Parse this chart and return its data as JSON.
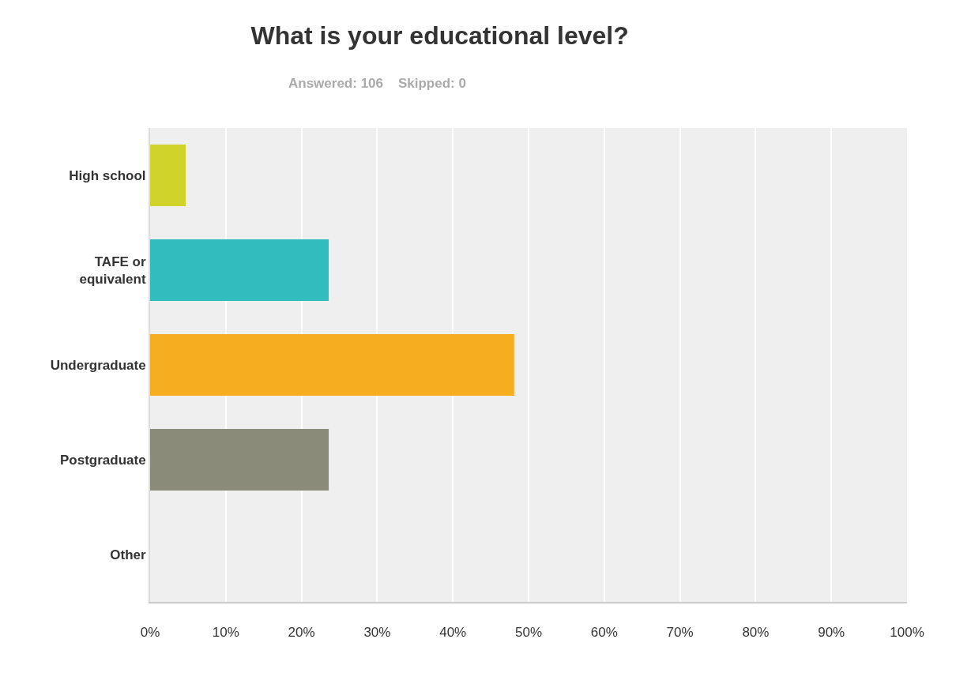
{
  "chart_data": {
    "type": "bar",
    "orientation": "horizontal",
    "title": "What is your educational level?",
    "subtitle": "Answered: 106    Skipped: 0",
    "categories": [
      "High school",
      "TAFE or equivalent",
      "Undergraduate",
      "Postgraduate",
      "Other"
    ],
    "values": [
      4.7,
      23.6,
      48.1,
      23.6,
      0
    ],
    "colors": [
      "#d0d42a",
      "#33bcbe",
      "#f6ae20",
      "#8a8b78",
      "#bbbbbb"
    ],
    "xlim": [
      0,
      100
    ],
    "xticks": [
      {
        "value": 0,
        "label": "0%"
      },
      {
        "value": 10,
        "label": "10%"
      },
      {
        "value": 20,
        "label": "20%"
      },
      {
        "value": 30,
        "label": "30%"
      },
      {
        "value": 40,
        "label": "40%"
      },
      {
        "value": 50,
        "label": "50%"
      },
      {
        "value": 60,
        "label": "60%"
      },
      {
        "value": 70,
        "label": "70%"
      },
      {
        "value": 80,
        "label": "80%"
      },
      {
        "value": 90,
        "label": "90%"
      },
      {
        "value": 100,
        "label": "100%"
      }
    ],
    "grid": "x"
  }
}
